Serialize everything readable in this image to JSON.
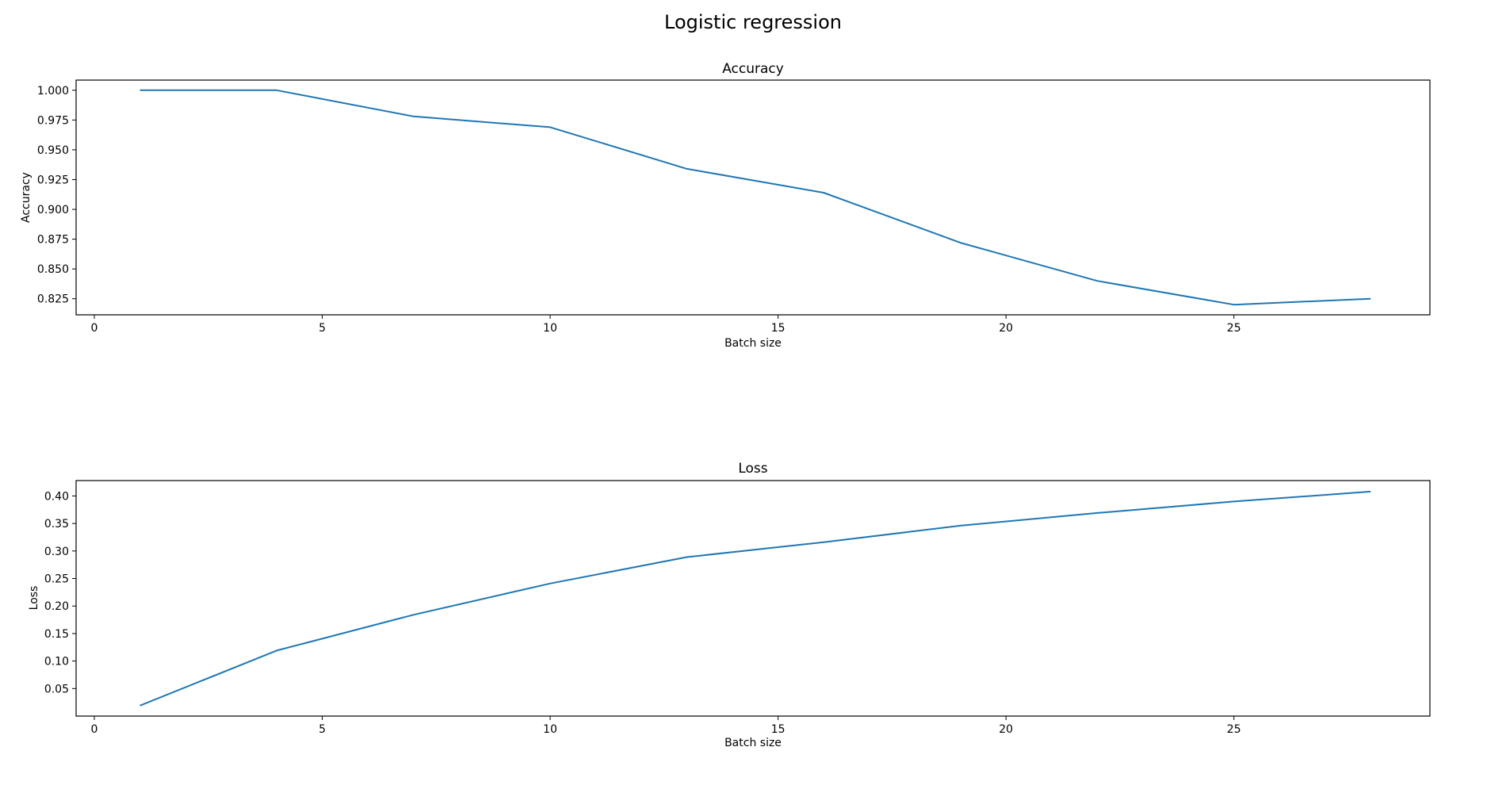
{
  "figure": {
    "title": "Logistic regression"
  },
  "chart_data": [
    {
      "type": "line",
      "title": "Accuracy",
      "xlabel": "Batch size",
      "ylabel": "Accuracy",
      "xlim": [
        -0.4,
        29.3
      ],
      "ylim": [
        0.8115,
        1.0085
      ],
      "xticks": [
        0,
        5,
        10,
        15,
        20,
        25
      ],
      "xtick_labels": [
        "0",
        "5",
        "10",
        "15",
        "20",
        "25"
      ],
      "yticks": [
        0.825,
        0.85,
        0.875,
        0.9,
        0.925,
        0.95,
        0.975,
        1.0
      ],
      "ytick_labels": [
        "0.825",
        "0.850",
        "0.875",
        "0.900",
        "0.925",
        "0.950",
        "0.975",
        "1.000"
      ],
      "grid": false,
      "series": [
        {
          "color": "#1f77b4",
          "x": [
            1,
            4,
            7,
            10,
            13,
            16,
            19,
            22,
            25,
            28
          ],
          "y": [
            1.0,
            1.0,
            0.978,
            0.969,
            0.934,
            0.914,
            0.872,
            0.84,
            0.82,
            0.825
          ]
        }
      ]
    },
    {
      "type": "line",
      "title": "Loss",
      "xlabel": "Batch size",
      "ylabel": "Loss",
      "xlim": [
        -0.4,
        29.3
      ],
      "ylim": [
        0.0,
        0.428
      ],
      "xticks": [
        0,
        5,
        10,
        15,
        20,
        25
      ],
      "xtick_labels": [
        "0",
        "5",
        "10",
        "15",
        "20",
        "25"
      ],
      "yticks": [
        0.05,
        0.1,
        0.15,
        0.2,
        0.25,
        0.3,
        0.35,
        0.4
      ],
      "ytick_labels": [
        "0.05",
        "0.10",
        "0.15",
        "0.20",
        "0.25",
        "0.30",
        "0.35",
        "0.40"
      ],
      "grid": false,
      "series": [
        {
          "color": "#1f77b4",
          "x": [
            1,
            4,
            7,
            10,
            13,
            16,
            19,
            22,
            25,
            28
          ],
          "y": [
            0.019,
            0.119,
            0.184,
            0.241,
            0.289,
            0.316,
            0.346,
            0.369,
            0.39,
            0.408
          ]
        }
      ]
    }
  ]
}
